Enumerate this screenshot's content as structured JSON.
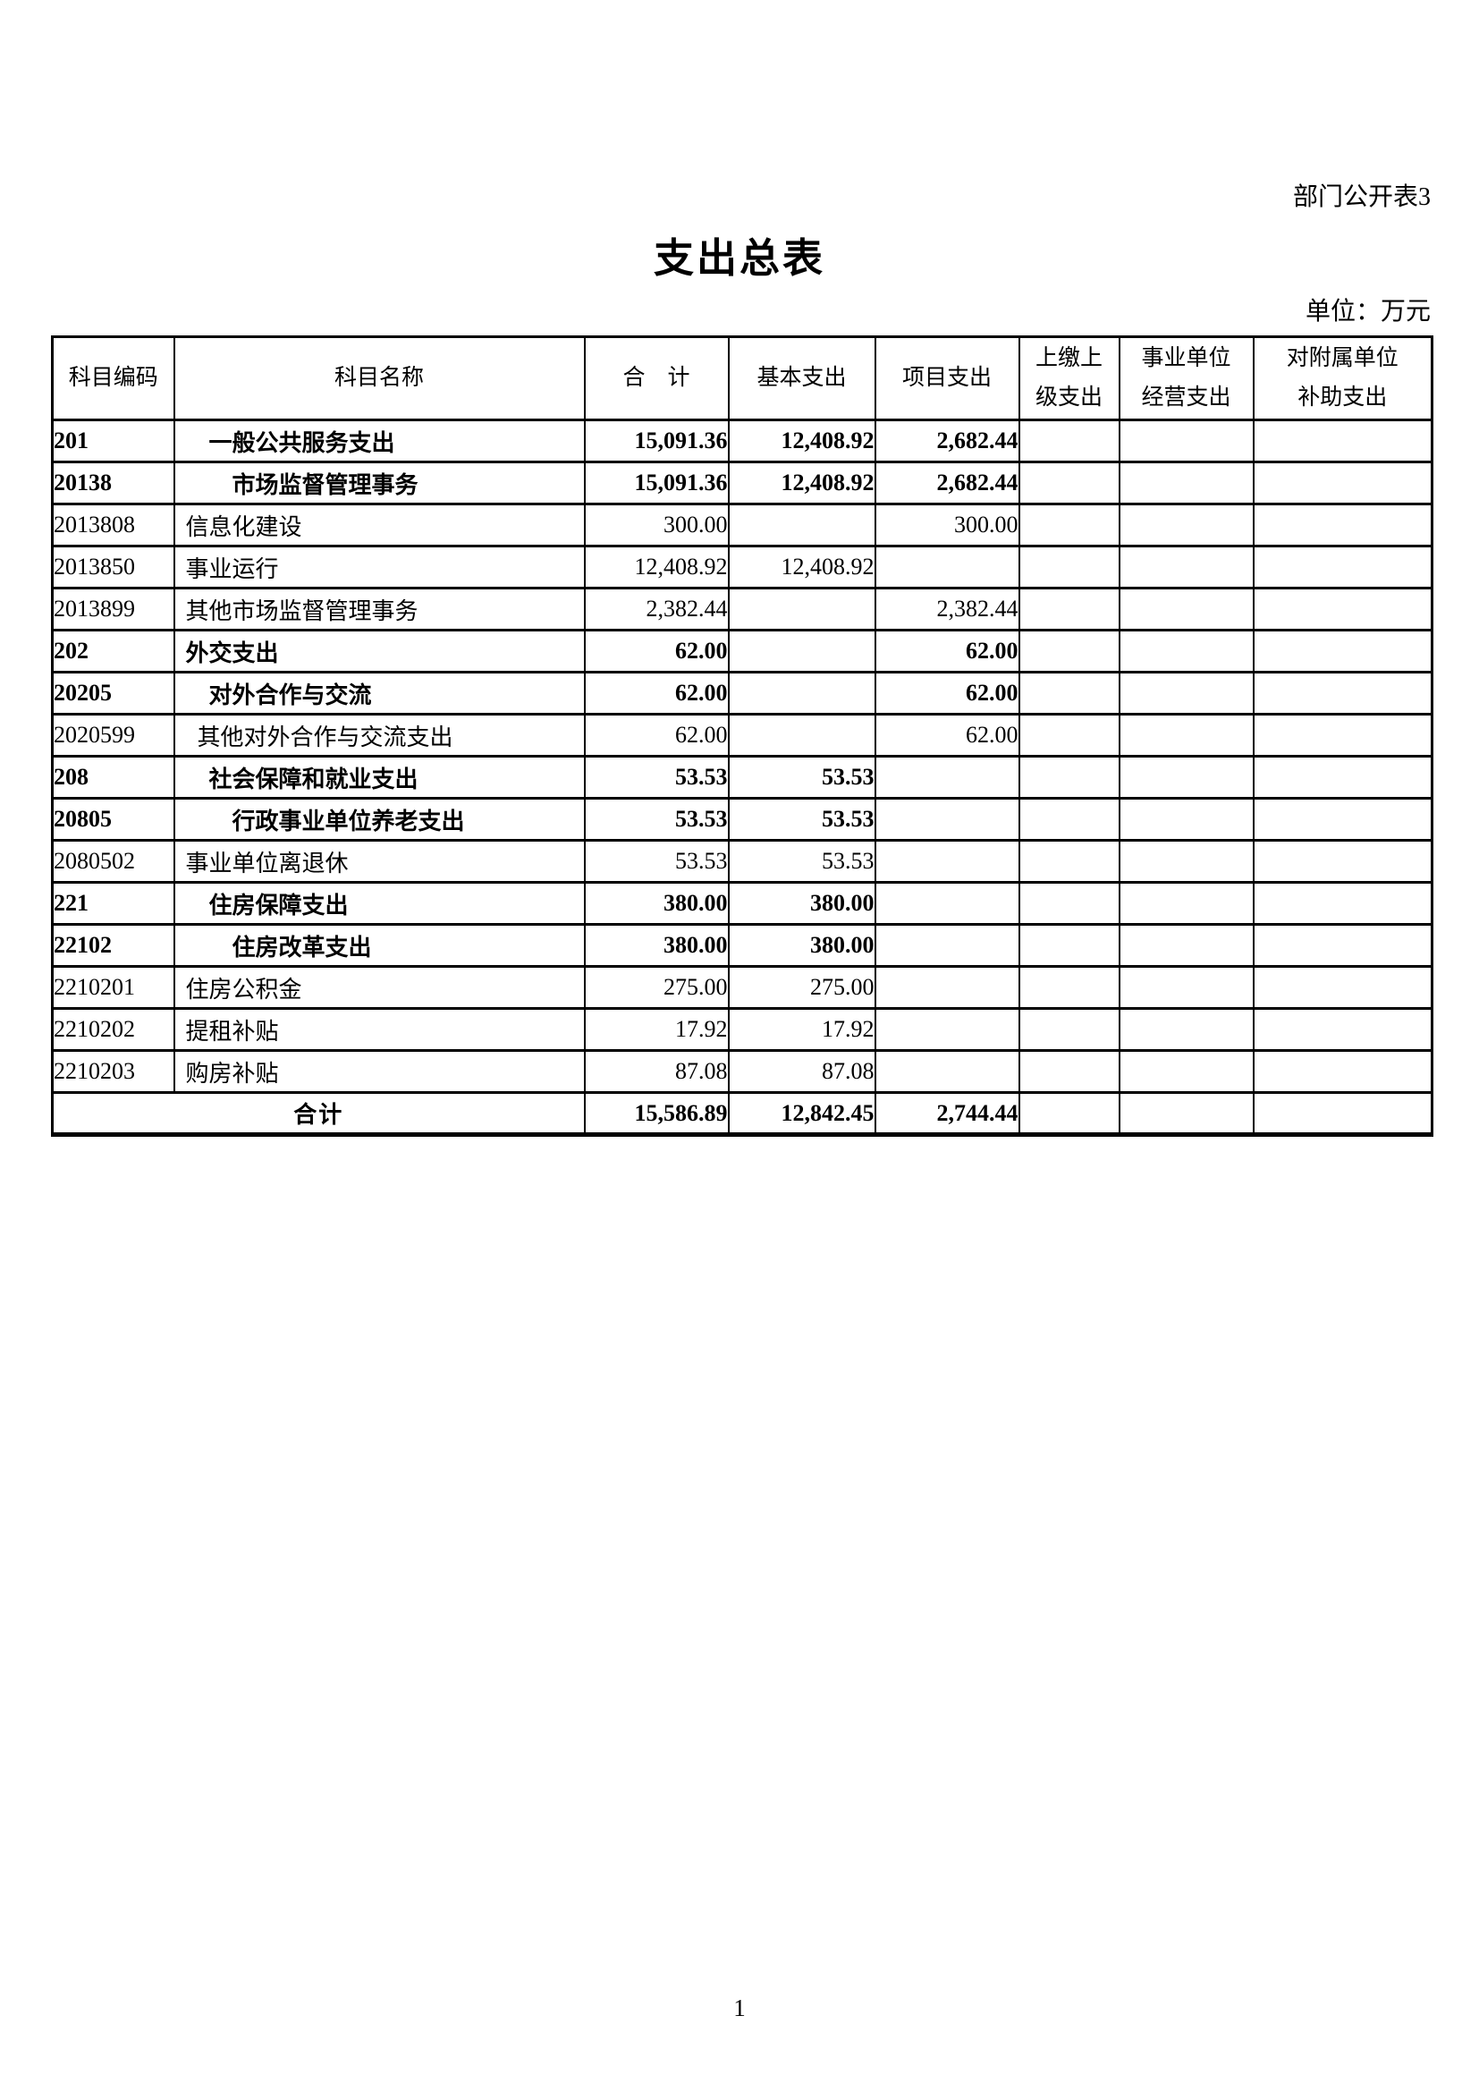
{
  "page": {
    "corner_note": "部门公开表3",
    "title": "支出总表",
    "unit_label": "单位：万元",
    "page_number": "1"
  },
  "table": {
    "columns": [
      {
        "key": "code",
        "label": "科目编码"
      },
      {
        "key": "name",
        "label": "科目名称"
      },
      {
        "key": "total",
        "label": "合　计"
      },
      {
        "key": "basic",
        "label": "基本支出"
      },
      {
        "key": "project",
        "label": "项目支出"
      },
      {
        "key": "upper",
        "label": "上缴上\n级支出"
      },
      {
        "key": "operating",
        "label": "事业单位\n经营支出"
      },
      {
        "key": "subsidy",
        "label": "对附属单位\n补助支出"
      }
    ],
    "rows": [
      {
        "code": "201",
        "name": "一般公共服务支出",
        "indent": 1,
        "bold": true,
        "total": "15,091.36",
        "basic": "12,408.92",
        "project": "2,682.44",
        "upper": "",
        "operating": "",
        "subsidy": ""
      },
      {
        "code": "20138",
        "name": "市场监督管理事务",
        "indent": 2,
        "bold": true,
        "total": "15,091.36",
        "basic": "12,408.92",
        "project": "2,682.44",
        "upper": "",
        "operating": "",
        "subsidy": ""
      },
      {
        "code": "2013808",
        "name": "信息化建设",
        "indent": 0,
        "bold": false,
        "total": "300.00",
        "basic": "",
        "project": "300.00",
        "upper": "",
        "operating": "",
        "subsidy": ""
      },
      {
        "code": "2013850",
        "name": "事业运行",
        "indent": 0,
        "bold": false,
        "total": "12,408.92",
        "basic": "12,408.92",
        "project": "",
        "upper": "",
        "operating": "",
        "subsidy": ""
      },
      {
        "code": "2013899",
        "name": "其他市场监督管理事务",
        "indent": 0,
        "bold": false,
        "total": "2,382.44",
        "basic": "",
        "project": "2,382.44",
        "upper": "",
        "operating": "",
        "subsidy": ""
      },
      {
        "code": "202",
        "name": "外交支出",
        "indent": 0,
        "bold": true,
        "total": "62.00",
        "basic": "",
        "project": "62.00",
        "upper": "",
        "operating": "",
        "subsidy": ""
      },
      {
        "code": "20205",
        "name": "对外合作与交流",
        "indent": 1,
        "bold": true,
        "total": "62.00",
        "basic": "",
        "project": "62.00",
        "upper": "",
        "operating": "",
        "subsidy": ""
      },
      {
        "code": "2020599",
        "name": "其他对外合作与交流支出",
        "indent": 0.5,
        "bold": false,
        "total": "62.00",
        "basic": "",
        "project": "62.00",
        "upper": "",
        "operating": "",
        "subsidy": ""
      },
      {
        "code": "208",
        "name": "社会保障和就业支出",
        "indent": 1,
        "bold": true,
        "total": "53.53",
        "basic": "53.53",
        "project": "",
        "upper": "",
        "operating": "",
        "subsidy": ""
      },
      {
        "code": "20805",
        "name": "行政事业单位养老支出",
        "indent": 2,
        "bold": true,
        "total": "53.53",
        "basic": "53.53",
        "project": "",
        "upper": "",
        "operating": "",
        "subsidy": ""
      },
      {
        "code": "2080502",
        "name": "事业单位离退休",
        "indent": 0,
        "bold": false,
        "total": "53.53",
        "basic": "53.53",
        "project": "",
        "upper": "",
        "operating": "",
        "subsidy": ""
      },
      {
        "code": "221",
        "name": "住房保障支出",
        "indent": 1,
        "bold": true,
        "total": "380.00",
        "basic": "380.00",
        "project": "",
        "upper": "",
        "operating": "",
        "subsidy": ""
      },
      {
        "code": "22102",
        "name": "住房改革支出",
        "indent": 2,
        "bold": true,
        "total": "380.00",
        "basic": "380.00",
        "project": "",
        "upper": "",
        "operating": "",
        "subsidy": ""
      },
      {
        "code": "2210201",
        "name": "住房公积金",
        "indent": 0,
        "bold": false,
        "total": "275.00",
        "basic": "275.00",
        "project": "",
        "upper": "",
        "operating": "",
        "subsidy": ""
      },
      {
        "code": "2210202",
        "name": "提租补贴",
        "indent": 0,
        "bold": false,
        "total": "17.92",
        "basic": "17.92",
        "project": "",
        "upper": "",
        "operating": "",
        "subsidy": ""
      },
      {
        "code": "2210203",
        "name": "购房补贴",
        "indent": 0,
        "bold": false,
        "total": "87.08",
        "basic": "87.08",
        "project": "",
        "upper": "",
        "operating": "",
        "subsidy": ""
      }
    ],
    "total_row": {
      "label": "合计",
      "total": "15,586.89",
      "basic": "12,842.45",
      "project": "2,744.44",
      "upper": "",
      "operating": "",
      "subsidy": ""
    }
  }
}
